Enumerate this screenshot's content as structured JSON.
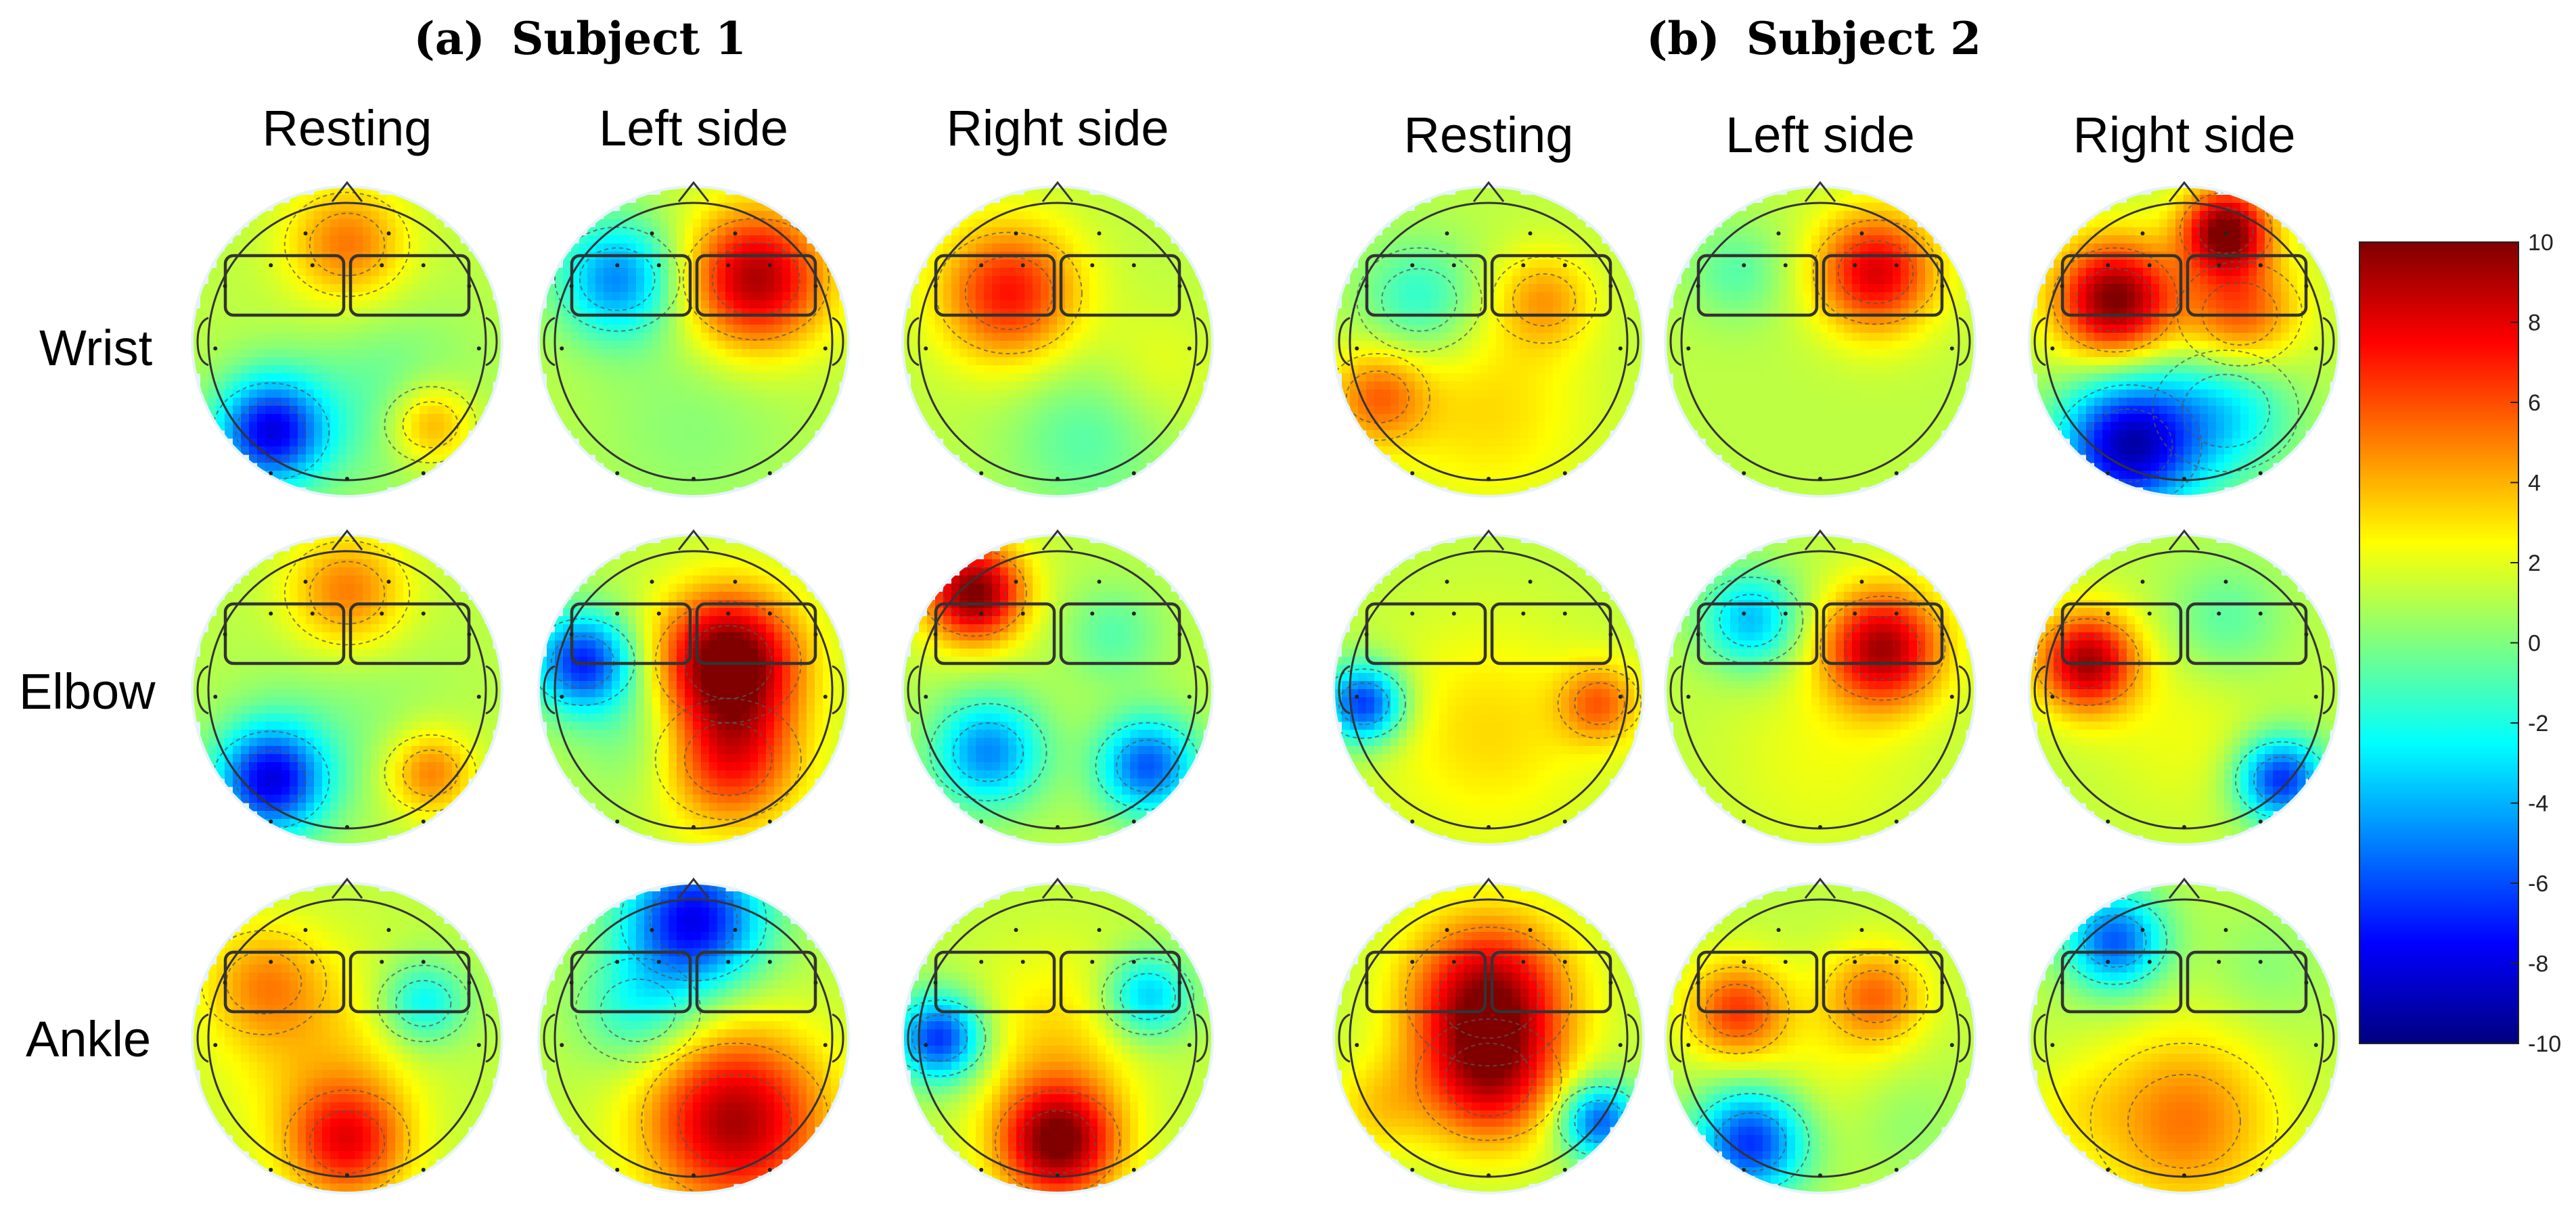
{
  "panels": [
    {
      "label_prefix": "(a)",
      "title": "Subject 1",
      "columns": [
        "Resting",
        "Left side",
        "Right side"
      ],
      "maps": [
        [
          {
            "row": "Wrist",
            "col": "Resting",
            "hotspots": [
              [
                0.3,
                0.45,
                -2,
                0.45
              ],
              [
                -0.55,
                0.65,
                -9,
                0.28
              ],
              [
                0.6,
                0.6,
                4,
                0.22
              ],
              [
                0.0,
                -0.7,
                4,
                0.3
              ]
            ]
          },
          {
            "row": "Wrist",
            "col": "Left side",
            "hotspots": [
              [
                0.45,
                -0.45,
                8,
                0.35
              ],
              [
                -0.55,
                -0.45,
                -6,
                0.3
              ],
              [
                0.0,
                0.6,
                -1,
                0.5
              ]
            ]
          },
          {
            "row": "Wrist",
            "col": "Right side",
            "hotspots": [
              [
                -0.35,
                -0.35,
                6,
                0.35
              ],
              [
                0.2,
                0.7,
                -2,
                0.4
              ],
              [
                0.7,
                0.2,
                1,
                0.3
              ]
            ]
          }
        ],
        [
          {
            "row": "Elbow",
            "col": "Resting",
            "hotspots": [
              [
                0.0,
                0.2,
                -1,
                0.5
              ],
              [
                -0.55,
                0.65,
                -9,
                0.28
              ],
              [
                0.6,
                0.6,
                4,
                0.22
              ],
              [
                0.0,
                -0.7,
                4,
                0.3
              ]
            ]
          },
          {
            "row": "Elbow",
            "col": "Left side",
            "hotspots": [
              [
                0.25,
                -0.2,
                10,
                0.35
              ],
              [
                0.25,
                0.5,
                6,
                0.35
              ],
              [
                -0.8,
                -0.2,
                -8,
                0.25
              ],
              [
                -0.3,
                0.3,
                -2,
                0.35
              ]
            ]
          },
          {
            "row": "Elbow",
            "col": "Right side",
            "hotspots": [
              [
                -0.6,
                -0.7,
                9,
                0.25
              ],
              [
                -0.5,
                0.45,
                -6,
                0.28
              ],
              [
                0.65,
                0.55,
                -7,
                0.25
              ],
              [
                0.4,
                -0.4,
                -2,
                0.25
              ]
            ]
          }
        ],
        [
          {
            "row": "Ankle",
            "col": "Resting",
            "hotspots": [
              [
                0.0,
                0.75,
                6,
                0.3
              ],
              [
                0.55,
                -0.25,
                -4,
                0.22
              ],
              [
                -0.2,
                0.1,
                2,
                0.5
              ],
              [
                -0.6,
                -0.4,
                3,
                0.3
              ]
            ]
          },
          {
            "row": "Ankle",
            "col": "Left side",
            "hotspots": [
              [
                0.3,
                0.6,
                8,
                0.45
              ],
              [
                0.0,
                -0.85,
                -9,
                0.35
              ],
              [
                -0.4,
                -0.2,
                -3,
                0.3
              ]
            ]
          },
          {
            "row": "Ankle",
            "col": "Right side",
            "hotspots": [
              [
                0.0,
                0.75,
                9,
                0.3
              ],
              [
                -0.85,
                0.0,
                -8,
                0.22
              ],
              [
                0.65,
                -0.3,
                -5,
                0.22
              ],
              [
                0.0,
                0.0,
                2,
                0.45
              ]
            ]
          }
        ]
      ]
    },
    {
      "label_prefix": "(b)",
      "title": "Subject 2",
      "columns": [
        "Resting",
        "Left side",
        "Right side"
      ],
      "maps": [
        [
          {
            "row": "Wrist",
            "col": "Resting",
            "hotspots": [
              [
                -0.5,
                -0.3,
                -3,
                0.3
              ],
              [
                0.4,
                -0.3,
                3,
                0.25
              ],
              [
                0.0,
                0.5,
                2,
                0.5
              ],
              [
                -0.8,
                0.4,
                4,
                0.25
              ]
            ]
          },
          {
            "row": "Wrist",
            "col": "Left side",
            "hotspots": [
              [
                0.4,
                -0.5,
                7,
                0.3
              ],
              [
                -0.2,
                0.3,
                0,
                0.5
              ],
              [
                -0.6,
                -0.5,
                -2,
                0.25
              ]
            ]
          },
          {
            "row": "Wrist",
            "col": "Right side",
            "hotspots": [
              [
                -0.5,
                -0.3,
                9,
                0.3
              ],
              [
                0.3,
                -0.8,
                9,
                0.22
              ],
              [
                0.4,
                -0.2,
                5,
                0.3
              ],
              [
                -0.4,
                0.75,
                -10,
                0.35
              ],
              [
                0.3,
                0.5,
                -4,
                0.35
              ]
            ]
          }
        ],
        [
          {
            "row": "Elbow",
            "col": "Resting",
            "hotspots": [
              [
                -0.9,
                0.1,
                -8,
                0.2
              ],
              [
                0.8,
                0.1,
                4,
                0.2
              ],
              [
                0.0,
                0.3,
                2,
                0.55
              ]
            ]
          },
          {
            "row": "Elbow",
            "col": "Left side",
            "hotspots": [
              [
                0.45,
                -0.3,
                8,
                0.3
              ],
              [
                -0.5,
                -0.5,
                -5,
                0.25
              ],
              [
                0.0,
                0.5,
                1,
                0.5
              ]
            ]
          },
          {
            "row": "Elbow",
            "col": "Right side",
            "hotspots": [
              [
                -0.7,
                -0.2,
                8,
                0.25
              ],
              [
                0.7,
                0.65,
                -8,
                0.22
              ],
              [
                0.3,
                -0.5,
                -2,
                0.3
              ],
              [
                0.0,
                0.3,
                1,
                0.45
              ]
            ]
          }
        ],
        [
          {
            "row": "Ankle",
            "col": "Resting",
            "hotspots": [
              [
                0.0,
                -0.3,
                8,
                0.4
              ],
              [
                0.0,
                0.3,
                6,
                0.35
              ],
              [
                0.8,
                0.6,
                -7,
                0.2
              ],
              [
                -0.8,
                0.5,
                2,
                0.25
              ]
            ]
          },
          {
            "row": "Ankle",
            "col": "Left side",
            "hotspots": [
              [
                -0.6,
                -0.2,
                5,
                0.25
              ],
              [
                0.4,
                -0.3,
                4,
                0.25
              ],
              [
                -0.5,
                0.75,
                -8,
                0.28
              ],
              [
                0.6,
                0.6,
                -1,
                0.3
              ],
              [
                0.0,
                0.2,
                1,
                0.45
              ]
            ]
          },
          {
            "row": "Ankle",
            "col": "Right side",
            "hotspots": [
              [
                -0.5,
                -0.7,
                -7,
                0.25
              ],
              [
                0.6,
                -0.5,
                -1,
                0.3
              ],
              [
                0.0,
                0.6,
                4,
                0.45
              ],
              [
                -0.8,
                0.5,
                1,
                0.25
              ]
            ]
          }
        ]
      ]
    }
  ],
  "rows": [
    "Wrist",
    "Elbow",
    "Ankle"
  ],
  "colorbar": {
    "ticks": [
      "10",
      "8",
      "6",
      "4",
      "2",
      "0",
      "-2",
      "-4",
      "-6",
      "-8",
      "-10"
    ],
    "min": -10,
    "max": 10,
    "colormap": "jet",
    "colors": [
      "#00007f",
      "#0000ff",
      "#007fff",
      "#00ffff",
      "#7fff7f",
      "#ffff00",
      "#ff7f00",
      "#ff0000",
      "#7f0000"
    ]
  }
}
